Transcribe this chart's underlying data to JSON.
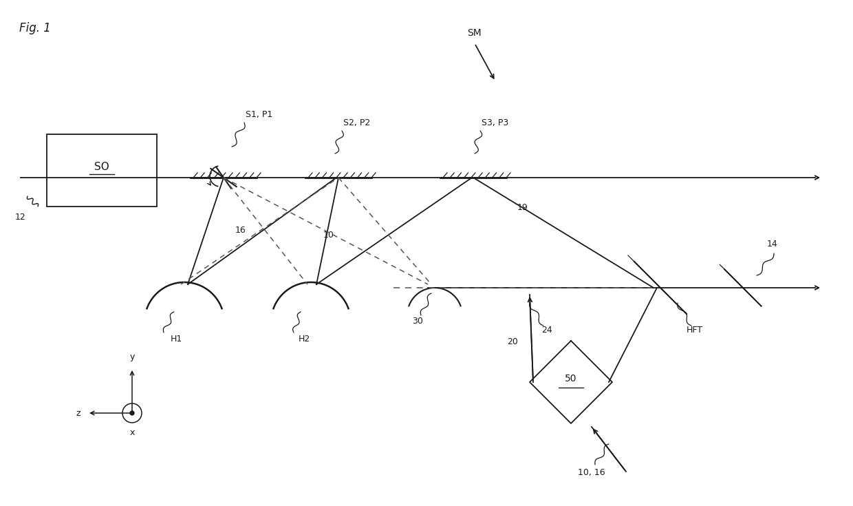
{
  "fig_label": "Fig. 1",
  "bg_color": "#ffffff",
  "lc": "#1a1a1a",
  "dc": "#555555",
  "labels": {
    "SO": "SO",
    "ref12": "12",
    "S1P1": "S1, P1",
    "S2P2": "S2, P2",
    "S3P3": "S3, P3",
    "H1": "H1",
    "H2": "H2",
    "ref16": "16",
    "ref10": "10",
    "ref19": "19",
    "ref30": "30",
    "ref20": "20",
    "ref24": "24",
    "ref14": "14",
    "HFT": "HFT",
    "ref50": "50",
    "ref10_16": "10, 16",
    "SM": "SM"
  }
}
